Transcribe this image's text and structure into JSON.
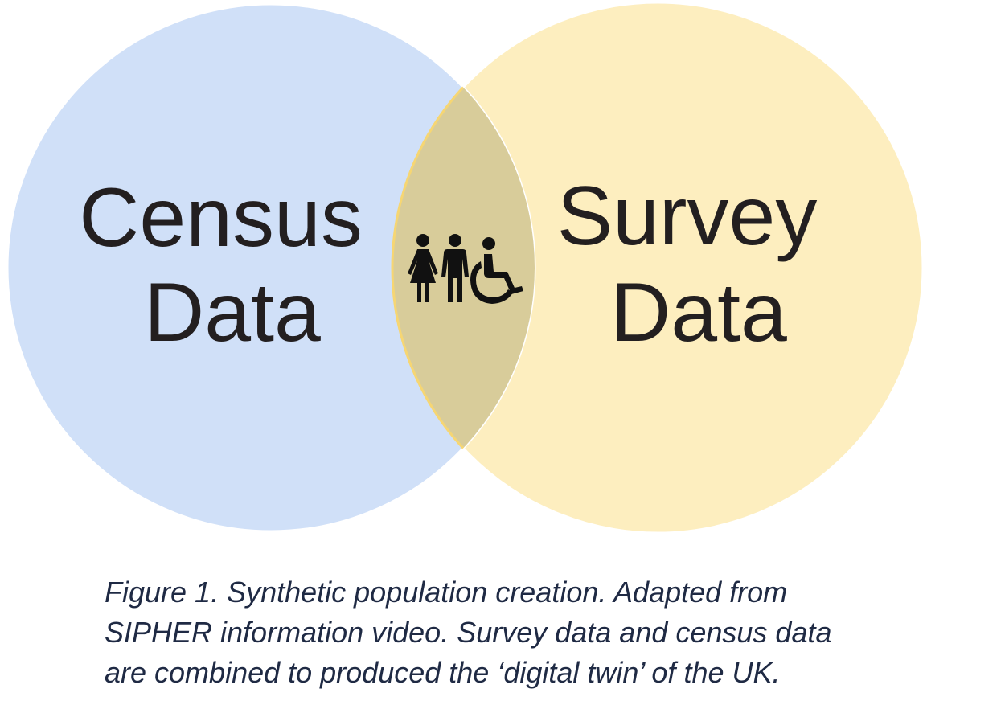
{
  "diagram": {
    "left_set": {
      "line1": "Census",
      "line2": "Data",
      "color": "#d0e0f8"
    },
    "right_set": {
      "line1": "Survey",
      "line2": "Data",
      "color": "#fdeebf"
    },
    "intersection": {
      "color": "#d8cc9a",
      "icons": [
        "woman-icon",
        "man-icon",
        "wheelchair-user-icon"
      ],
      "icon_color": "#111111"
    }
  },
  "caption": {
    "line1": "Figure 1. Synthetic population creation. Adapted from",
    "line2": "SIPHER information video. Survey data and census data",
    "line3": "are combined to produced the ‘digital twin’ of the UK."
  }
}
